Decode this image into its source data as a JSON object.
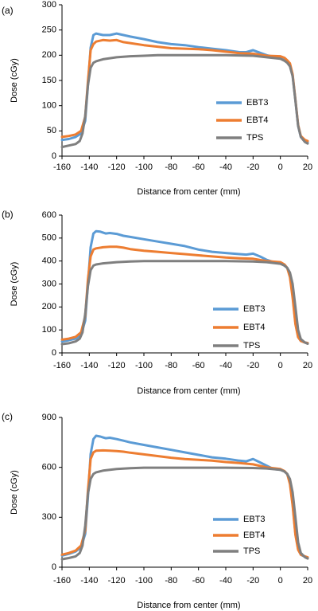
{
  "colors": {
    "EBT3": "#5b9bd5",
    "EBT4": "#ed7d31",
    "TPS": "#7f7f7f"
  },
  "chart_data": [
    {
      "type": "line",
      "panel_label": "(a)",
      "xlabel": "Distance from center (mm)",
      "ylabel": "Dose (cGy)",
      "xlim": [
        -160,
        20
      ],
      "ylim": [
        0,
        300
      ],
      "xticks": [
        -160,
        -140,
        -120,
        -100,
        -80,
        -60,
        -40,
        -20,
        0,
        20
      ],
      "yticks": [
        0,
        50,
        100,
        150,
        200,
        250,
        300
      ],
      "legend_position": "right",
      "series": [
        {
          "name": "EBT3",
          "color_key": "EBT3",
          "x": [
            -160,
            -155,
            -150,
            -146,
            -143,
            -141,
            -139,
            -137,
            -135,
            -130,
            -125,
            -120,
            -115,
            -110,
            -100,
            -90,
            -80,
            -70,
            -60,
            -50,
            -40,
            -30,
            -25,
            -20,
            -15,
            -10,
            -5,
            0,
            3,
            5,
            7,
            9,
            11,
            13,
            15,
            18,
            20
          ],
          "y": [
            32,
            34,
            38,
            45,
            70,
            140,
            215,
            240,
            243,
            240,
            240,
            243,
            240,
            237,
            232,
            226,
            222,
            220,
            216,
            213,
            210,
            206,
            206,
            210,
            205,
            200,
            197,
            196,
            192,
            188,
            182,
            160,
            110,
            60,
            38,
            30,
            28
          ]
        },
        {
          "name": "EBT4",
          "color_key": "EBT4",
          "x": [
            -160,
            -155,
            -150,
            -146,
            -143,
            -141,
            -139,
            -137,
            -135,
            -130,
            -125,
            -120,
            -115,
            -110,
            -100,
            -90,
            -80,
            -70,
            -60,
            -50,
            -40,
            -30,
            -20,
            -10,
            0,
            3,
            5,
            7,
            9,
            11,
            13,
            15,
            18,
            20
          ],
          "y": [
            38,
            40,
            43,
            50,
            78,
            148,
            210,
            222,
            227,
            230,
            229,
            230,
            226,
            224,
            220,
            217,
            214,
            213,
            212,
            210,
            207,
            204,
            203,
            199,
            198,
            195,
            190,
            184,
            162,
            112,
            62,
            40,
            32,
            30
          ]
        },
        {
          "name": "TPS",
          "color_key": "TPS",
          "x": [
            -160,
            -155,
            -150,
            -147,
            -145,
            -143,
            -141,
            -139,
            -137,
            -135,
            -130,
            -120,
            -110,
            -100,
            -90,
            -80,
            -60,
            -40,
            -20,
            -10,
            0,
            3,
            5,
            7,
            9,
            11,
            13,
            15,
            18,
            20
          ],
          "y": [
            18,
            21,
            24,
            30,
            45,
            80,
            140,
            175,
            185,
            188,
            192,
            196,
            198,
            199,
            200,
            200,
            200,
            200,
            199,
            196,
            193,
            189,
            185,
            178,
            158,
            110,
            60,
            38,
            28,
            25
          ]
        }
      ]
    },
    {
      "type": "line",
      "panel_label": "(b)",
      "xlabel": "Distance from center (mm)",
      "ylabel": "Dose (cGy)",
      "xlim": [
        -160,
        20
      ],
      "ylim": [
        0,
        600
      ],
      "xticks": [
        -160,
        -140,
        -120,
        -100,
        -80,
        -60,
        -40,
        -20,
        0,
        20
      ],
      "yticks": [
        0,
        100,
        200,
        300,
        400,
        500,
        600
      ],
      "legend_position": "bottom-right",
      "series": [
        {
          "name": "EBT3",
          "color_key": "EBT3",
          "x": [
            -160,
            -155,
            -150,
            -146,
            -143,
            -141,
            -139,
            -137,
            -135,
            -132,
            -128,
            -125,
            -120,
            -115,
            -110,
            -100,
            -90,
            -80,
            -70,
            -60,
            -50,
            -40,
            -30,
            -25,
            -20,
            -15,
            -10,
            -5,
            0,
            3,
            5,
            7,
            9,
            11,
            13,
            15,
            18,
            20
          ],
          "y": [
            50,
            55,
            62,
            80,
            140,
            300,
            460,
            520,
            530,
            528,
            520,
            522,
            518,
            510,
            505,
            495,
            485,
            475,
            465,
            450,
            440,
            435,
            430,
            428,
            432,
            420,
            405,
            395,
            390,
            380,
            370,
            340,
            250,
            130,
            70,
            52,
            45,
            43
          ]
        },
        {
          "name": "EBT4",
          "color_key": "EBT4",
          "x": [
            -160,
            -155,
            -150,
            -146,
            -143,
            -141,
            -139,
            -137,
            -135,
            -130,
            -125,
            -120,
            -115,
            -110,
            -100,
            -90,
            -80,
            -70,
            -60,
            -50,
            -40,
            -30,
            -20,
            -10,
            0,
            3,
            5,
            7,
            9,
            11,
            13,
            15,
            18,
            20
          ],
          "y": [
            58,
            62,
            70,
            90,
            160,
            320,
            420,
            450,
            455,
            460,
            462,
            462,
            458,
            452,
            445,
            440,
            435,
            430,
            425,
            420,
            415,
            412,
            410,
            400,
            395,
            385,
            370,
            330,
            240,
            125,
            68,
            52,
            45,
            43
          ]
        },
        {
          "name": "TPS",
          "color_key": "TPS",
          "x": [
            -160,
            -155,
            -150,
            -147,
            -145,
            -143,
            -141,
            -139,
            -137,
            -135,
            -130,
            -120,
            -110,
            -100,
            -90,
            -80,
            -60,
            -40,
            -20,
            -10,
            0,
            3,
            5,
            7,
            9,
            11,
            13,
            15,
            18,
            20
          ],
          "y": [
            38,
            42,
            50,
            62,
            90,
            170,
            290,
            360,
            380,
            385,
            390,
            395,
            398,
            400,
            400,
            400,
            400,
            400,
            398,
            395,
            388,
            380,
            370,
            350,
            300,
            200,
            100,
            60,
            45,
            40
          ]
        }
      ]
    },
    {
      "type": "line",
      "panel_label": "(c)",
      "xlabel": "Distance from center (mm)",
      "ylabel": "Dose (cGy)",
      "xlim": [
        -160,
        20
      ],
      "ylim": [
        0,
        900
      ],
      "xticks": [
        -160,
        -140,
        -120,
        -100,
        -80,
        -60,
        -40,
        -20,
        0,
        20
      ],
      "yticks": [
        0,
        300,
        600,
        900
      ],
      "legend_position": "bottom-right",
      "series": [
        {
          "name": "EBT3",
          "color_key": "EBT3",
          "x": [
            -160,
            -155,
            -150,
            -146,
            -143,
            -141,
            -139,
            -137,
            -135,
            -132,
            -128,
            -125,
            -120,
            -115,
            -110,
            -100,
            -90,
            -80,
            -70,
            -60,
            -50,
            -40,
            -30,
            -25,
            -20,
            -15,
            -10,
            -5,
            0,
            3,
            5,
            7,
            9,
            11,
            13,
            15,
            18,
            20
          ],
          "y": [
            70,
            80,
            95,
            120,
            200,
            420,
            680,
            770,
            790,
            785,
            775,
            778,
            770,
            760,
            750,
            735,
            720,
            705,
            690,
            675,
            660,
            652,
            640,
            636,
            650,
            630,
            610,
            590,
            585,
            575,
            560,
            510,
            380,
            200,
            110,
            75,
            62,
            58
          ]
        },
        {
          "name": "EBT4",
          "color_key": "EBT4",
          "x": [
            -160,
            -155,
            -150,
            -146,
            -143,
            -141,
            -139,
            -137,
            -135,
            -130,
            -125,
            -120,
            -115,
            -110,
            -100,
            -90,
            -80,
            -70,
            -60,
            -50,
            -40,
            -30,
            -20,
            -10,
            0,
            3,
            5,
            7,
            9,
            11,
            13,
            15,
            18,
            20
          ],
          "y": [
            75,
            85,
            100,
            130,
            220,
            460,
            650,
            690,
            700,
            702,
            700,
            698,
            694,
            688,
            678,
            668,
            658,
            650,
            645,
            640,
            632,
            626,
            618,
            600,
            590,
            578,
            560,
            500,
            370,
            195,
            105,
            75,
            65,
            60
          ]
        },
        {
          "name": "TPS",
          "color_key": "TPS",
          "x": [
            -160,
            -155,
            -150,
            -147,
            -145,
            -143,
            -141,
            -139,
            -137,
            -135,
            -130,
            -120,
            -110,
            -100,
            -90,
            -80,
            -60,
            -40,
            -20,
            -10,
            0,
            3,
            5,
            7,
            9,
            11,
            13,
            15,
            18,
            20
          ],
          "y": [
            48,
            55,
            65,
            85,
            130,
            250,
            440,
            530,
            560,
            570,
            580,
            590,
            595,
            598,
            598,
            598,
            598,
            598,
            596,
            593,
            585,
            575,
            560,
            530,
            450,
            300,
            150,
            85,
            60,
            52
          ]
        }
      ]
    }
  ]
}
